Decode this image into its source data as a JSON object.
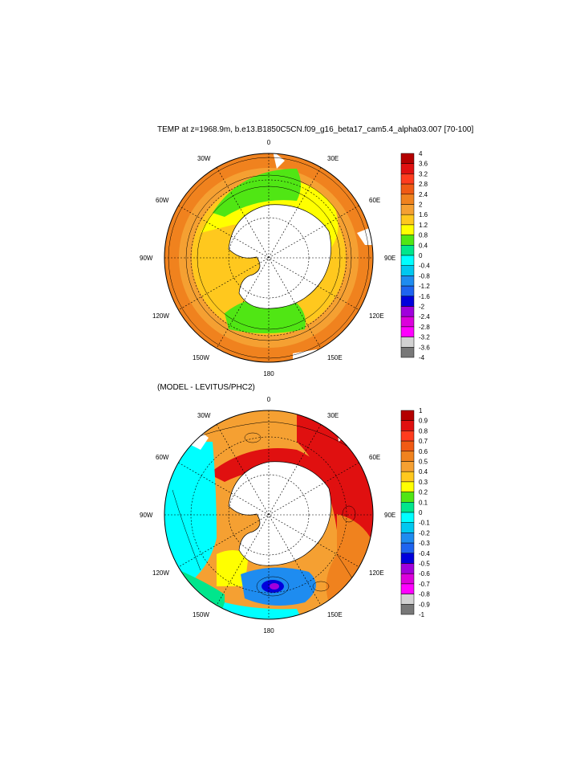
{
  "top_panel": {
    "title": "TEMP at z=1968.9m, b.e13.B1850C5CN.f09_g16_beta17_cam5.4_alpha03.007 [70-100]",
    "lon_labels": {
      "0": "0",
      "30E": "30E",
      "60E": "60E",
      "90E": "90E",
      "120E": "120E",
      "150E": "150E",
      "180": "180",
      "150W": "150W",
      "120W": "120W",
      "90W": "90W",
      "60W": "60W",
      "30W": "30W"
    },
    "colorbar": {
      "labels": [
        "4",
        "3.6",
        "3.2",
        "2.8",
        "2.4",
        "2",
        "1.6",
        "1.2",
        "0.8",
        "0.4",
        "0",
        "-0.4",
        "-0.8",
        "-1.2",
        "-1.6",
        "-2",
        "-2.4",
        "-2.8",
        "-3.2",
        "-3.6",
        "-4"
      ],
      "colors": [
        "#b40000",
        "#e01010",
        "#ff3c1e",
        "#f05a14",
        "#f0821e",
        "#f5a032",
        "#ffc81e",
        "#ffff00",
        "#50e614",
        "#00e68c",
        "#00ffff",
        "#00c8f0",
        "#1e8cf0",
        "#1e64f0",
        "#0000dc",
        "#a000dc",
        "#dc00dc",
        "#ff00ff",
        "#d2d2d2",
        "#787878"
      ]
    }
  },
  "bottom_panel": {
    "title": "(MODEL - LEVITUS/PHC2)",
    "lon_labels": {
      "0": "0",
      "30E": "30E",
      "60E": "60E",
      "90E": "90E",
      "120E": "120E",
      "150E": "150E",
      "180": "180",
      "150W": "150W",
      "120W": "120W",
      "90W": "90W",
      "60W": "60W",
      "30W": "30W"
    },
    "colorbar": {
      "labels": [
        "1",
        "0.9",
        "0.8",
        "0.7",
        "0.6",
        "0.5",
        "0.4",
        "0.3",
        "0.2",
        "0.1",
        "0",
        "-0.1",
        "-0.2",
        "-0.3",
        "-0.4",
        "-0.5",
        "-0.6",
        "-0.7",
        "-0.8",
        "-0.9",
        "-1"
      ],
      "colors": [
        "#b40000",
        "#e01010",
        "#ff3c1e",
        "#f05a14",
        "#f0821e",
        "#f5a032",
        "#ffc81e",
        "#ffff00",
        "#50e614",
        "#00e68c",
        "#00ffff",
        "#00c8f0",
        "#1e8cf0",
        "#1e64f0",
        "#0000dc",
        "#a000dc",
        "#dc00dc",
        "#ff00ff",
        "#d2d2d2",
        "#787878"
      ]
    }
  }
}
